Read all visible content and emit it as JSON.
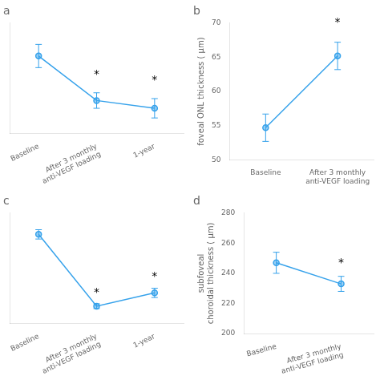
{
  "chart_data": [
    {
      "type": "line",
      "title": "a",
      "categories": [
        "Baseline",
        "After 3 monthly\nanti-VEGF loading",
        "1-year"
      ],
      "values": [
        0.65,
        0.42,
        0.38
      ],
      "yerr": [
        0.06,
        0.04,
        0.05
      ],
      "ylim": [
        0.25,
        0.82
      ],
      "yticks": [],
      "tick_labels": "x",
      "annotations": [
        {
          "text": "*",
          "x": "After 3 monthly\nanti-VEGF loading",
          "y": 0.54
        },
        {
          "text": "*",
          "x": "1-year",
          "y": 0.51
        }
      ],
      "marker": "circle",
      "line_style": "solid",
      "grid": false
    },
    {
      "type": "line",
      "title": "b",
      "categories": [
        "Baseline",
        "After 3 monthly\nanti-VEGF loading"
      ],
      "values": [
        54.7,
        65.2
      ],
      "yerr": [
        2.0,
        2.0
      ],
      "y_label": "foveal ONL thickness ( μm)",
      "ylim": [
        50,
        70
      ],
      "yticks": [
        50,
        55,
        60,
        65,
        70
      ],
      "annotations": [
        {
          "text": "*",
          "x": "After 3 monthly\nanti-VEGF loading",
          "y": 69.7
        }
      ],
      "marker": "circle",
      "line_style": "solid",
      "grid": false
    },
    {
      "type": "line",
      "title": "c",
      "categories": [
        "Baseline",
        "After 3 monthly\nanti-VEGF loading",
        "1-year"
      ],
      "values": [
        0.72,
        0.18,
        0.28
      ],
      "yerr": [
        0.035,
        0.018,
        0.035
      ],
      "ylim": [
        0.05,
        0.88
      ],
      "yticks": [],
      "tick_labels": "x",
      "annotations": [
        {
          "text": "*",
          "x": "After 3 monthly\nanti-VEGF loading",
          "y": 0.263
        },
        {
          "text": "*",
          "x": "1-year",
          "y": 0.38
        }
      ],
      "marker": "circle",
      "line_style": "solid",
      "grid": false
    },
    {
      "type": "line",
      "title": "d",
      "categories": [
        "Baseline",
        "After 3 monthly\nanti-VEGF loading"
      ],
      "values": [
        247,
        233
      ],
      "yerr": [
        7,
        5
      ],
      "y_label": "subfoveal\nchoroidal thickness ( μm)",
      "ylim": [
        200,
        280
      ],
      "yticks": [
        200,
        220,
        240,
        260,
        280
      ],
      "annotations": [
        {
          "text": "*",
          "x": "After 3 monthly\nanti-VEGF loading",
          "y": 245
        }
      ],
      "marker": "circle",
      "line_style": "solid",
      "grid": false
    }
  ]
}
